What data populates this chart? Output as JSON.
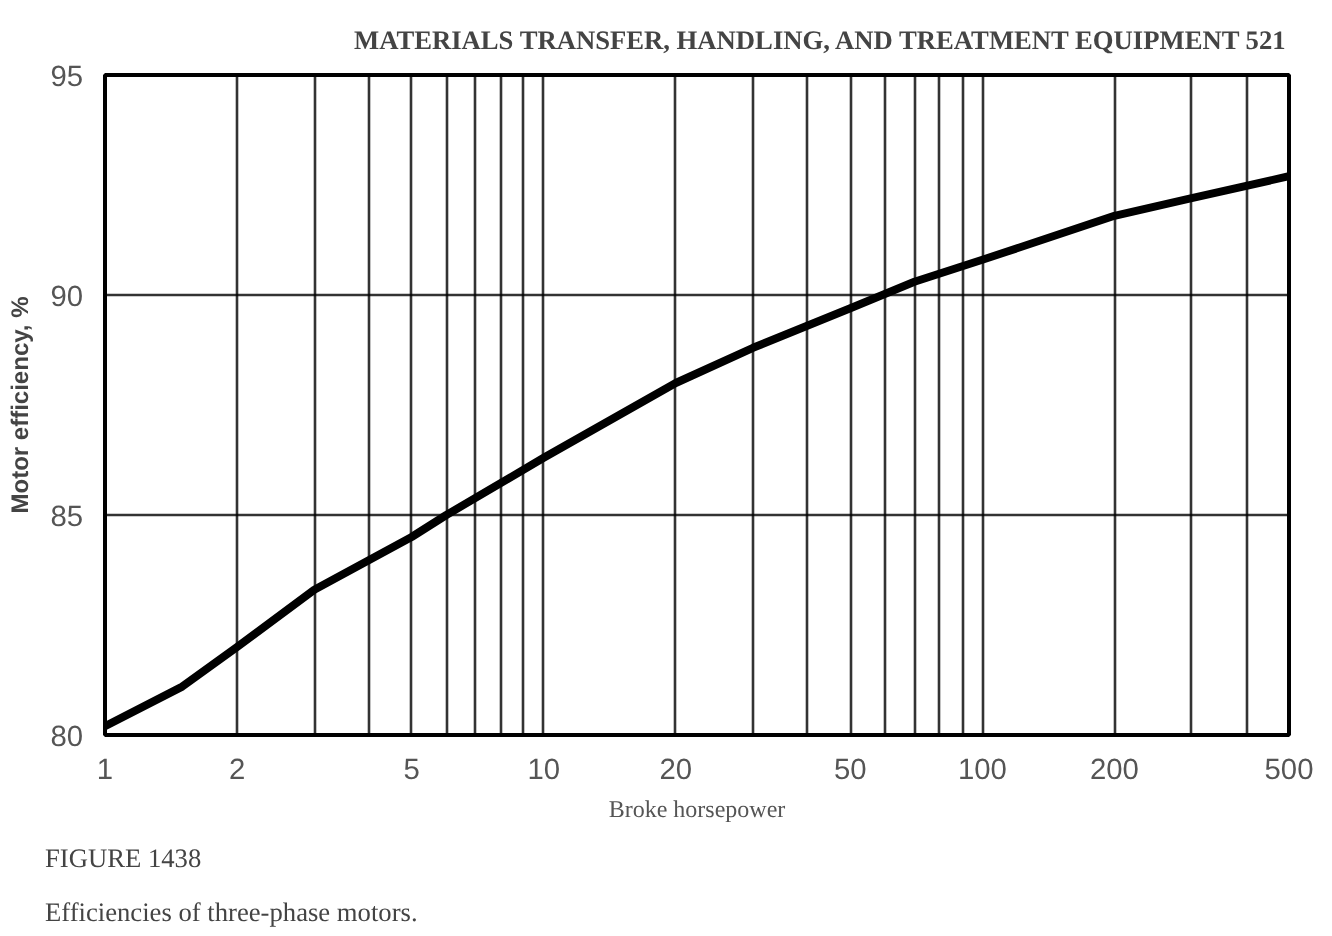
{
  "chart_data": {
    "type": "line",
    "annotations": [
      "MATERIALS TRANSFER, HANDLING, AND TREATMENT EQUIPMENT 521",
      "FIGURE 1438",
      "Efficiencies of three-phase motors."
    ],
    "xlabel": "Broke horsepower",
    "ylabel": "Motor efficiency, %",
    "x": [
      1,
      1.5,
      2,
      3,
      5,
      6,
      10,
      20,
      30,
      50,
      70,
      100,
      200,
      300,
      500
    ],
    "series": [
      {
        "color": "#000000",
        "values": [
          80.2,
          81.1,
          82,
          83.3,
          84.5,
          85,
          86.3,
          88,
          88.8,
          89.7,
          90.3,
          90.8,
          91.8,
          92.2,
          92.7
        ]
      }
    ],
    "log": "x",
    "grid": true,
    "line_style": "solid",
    "xlim": [
      1,
      500
    ],
    "ylim": [
      80,
      95
    ],
    "xticks": [
      1,
      2,
      {
        "value": 3,
        "label": null
      },
      {
        "value": 4,
        "label": null
      },
      5,
      {
        "value": 6,
        "label": null
      },
      {
        "value": 7,
        "label": null
      },
      {
        "value": 8,
        "label": null
      },
      {
        "value": 9,
        "label": null
      },
      10,
      20,
      {
        "value": 30,
        "label": null
      },
      {
        "value": 40,
        "label": null
      },
      50,
      {
        "value": 60,
        "label": null
      },
      {
        "value": 70,
        "label": null
      },
      {
        "value": 80,
        "label": null
      },
      {
        "value": 90,
        "label": null
      },
      100,
      200,
      {
        "value": 300,
        "label": null
      },
      {
        "value": 400,
        "label": null
      },
      500
    ],
    "yticks": [
      80,
      85,
      90,
      95
    ]
  }
}
